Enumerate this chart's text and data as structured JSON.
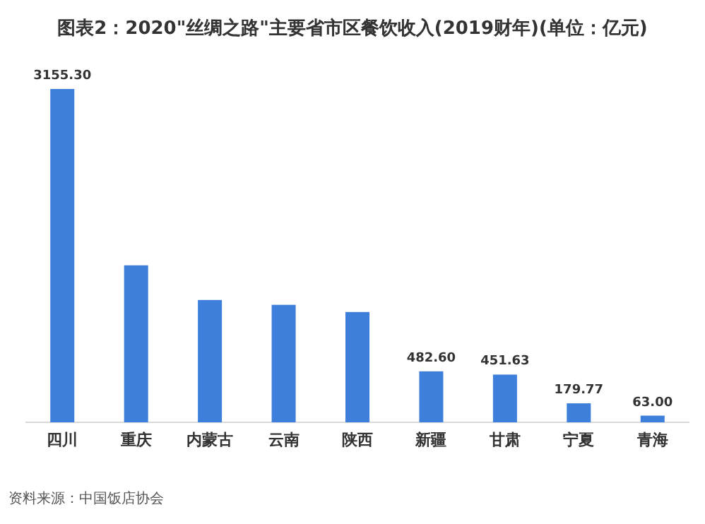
{
  "chart_data": {
    "type": "bar",
    "title": "图表2：2020\"丝绸之路\"主要省市区餐饮收入(2019财年)(单位：亿元)",
    "categories": [
      "四川",
      "重庆",
      "内蒙古",
      "云南",
      "陕西",
      "新疆",
      "甘肃",
      "宁夏",
      "青海"
    ],
    "values": [
      3155.3,
      1486,
      1158,
      1112,
      1044,
      482.6,
      451.63,
      179.77,
      63.0
    ],
    "value_labels": [
      "3155.30",
      null,
      null,
      null,
      null,
      "482.60",
      "451.63",
      "179.77",
      "63.00"
    ],
    "color": "#3d7fdb",
    "annotations": [
      "资料来源：中国饭店协会"
    ]
  }
}
